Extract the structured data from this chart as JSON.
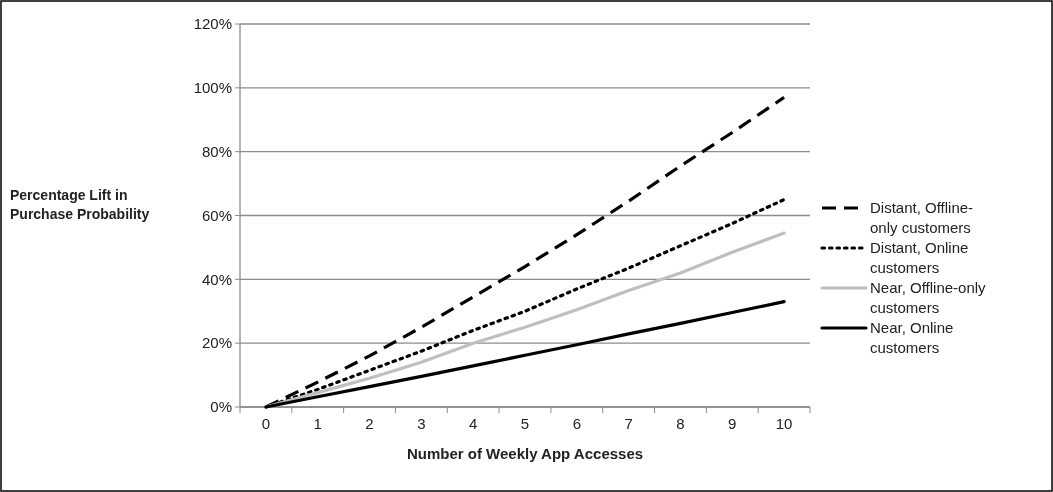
{
  "chart_data": {
    "type": "line",
    "xlabel": "Number of Weekly App Accesses",
    "ylabel": "Percentage Lift in Purchase Probability",
    "categories": [
      "0",
      "1",
      "2",
      "3",
      "4",
      "5",
      "6",
      "7",
      "8",
      "9",
      "10"
    ],
    "ylim": [
      0,
      120
    ],
    "yticks": [
      {
        "value": 0,
        "label": "0%"
      },
      {
        "value": 20,
        "label": "20%"
      },
      {
        "value": 40,
        "label": "40%"
      },
      {
        "value": 60,
        "label": "60%"
      },
      {
        "value": 80,
        "label": "80%"
      },
      {
        "value": 100,
        "label": "100%"
      },
      {
        "value": 120,
        "label": "120%"
      }
    ],
    "grid": "y",
    "legend": "right",
    "marker": "none",
    "series": [
      {
        "name": "Distant, Offline-only customers",
        "color": "#000000",
        "line_style": "dashed",
        "values": [
          0,
          7.8,
          16,
          25,
          34.5,
          44,
          54,
          64.5,
          75.5,
          86,
          97
        ]
      },
      {
        "name": "Distant, Online customers",
        "color": "#000000",
        "line_style": "dotted",
        "values": [
          0,
          5.5,
          11.5,
          17.5,
          24,
          30,
          37,
          43.5,
          50.5,
          57.5,
          65
        ]
      },
      {
        "name": "Near, Offline-only customers",
        "color": "#bfbfbf",
        "line_style": "solid",
        "values": [
          0,
          4.5,
          9,
          14,
          20,
          25,
          30.5,
          36.5,
          42,
          48.5,
          54.5
        ]
      },
      {
        "name": "Near, Online customers",
        "color": "#000000",
        "line_style": "solid",
        "values": [
          0,
          3.2,
          6.4,
          9.6,
          12.9,
          16.2,
          19.5,
          22.9,
          26.2,
          29.6,
          33
        ]
      }
    ]
  }
}
